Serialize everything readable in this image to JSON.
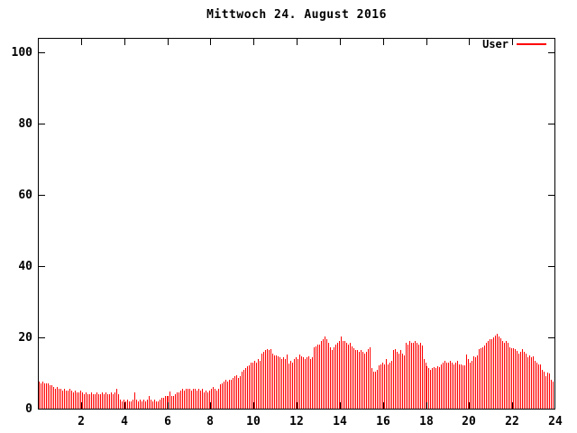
{
  "title": "Mittwoch 24. August 2016",
  "legend": {
    "label": "User",
    "color": "#ff0000"
  },
  "colors": {
    "bar": "#ff0000",
    "axis": "#000000",
    "background": "#ffffff"
  },
  "chart_data": {
    "type": "bar",
    "title": "Mittwoch 24. August 2016",
    "series_name": "User",
    "bar_style": "impulses",
    "bar_color": "#ff0000",
    "x_unit": "hour-of-day",
    "sample_interval_minutes": 5,
    "xlim": [
      0,
      24
    ],
    "ylim": [
      0,
      104
    ],
    "x_ticks": [
      2,
      4,
      6,
      8,
      10,
      12,
      14,
      16,
      18,
      20,
      22,
      24
    ],
    "y_ticks": [
      0,
      20,
      40,
      60,
      80,
      100
    ],
    "grid": false,
    "legend_position": "top-right",
    "values": [
      7.5,
      7,
      7.5,
      7,
      7,
      7,
      6.5,
      6.5,
      6,
      5.5,
      6,
      5.5,
      5.5,
      5,
      5.5,
      5,
      5,
      5.5,
      5,
      4.5,
      5,
      4.5,
      4.5,
      5,
      4.5,
      4,
      4.5,
      4,
      4,
      4.5,
      4,
      4,
      4.5,
      4,
      4,
      4.5,
      4,
      4.5,
      4,
      4,
      4.5,
      4,
      4.5,
      5.5,
      4,
      2.5,
      2,
      2.5,
      2,
      2.5,
      2,
      2,
      2.5,
      4.5,
      2.5,
      2,
      2.5,
      2,
      2.5,
      2,
      2.5,
      3.5,
      2.5,
      2,
      2.5,
      2,
      2,
      2.5,
      3,
      3,
      3.5,
      3.5,
      3.5,
      4.75,
      3.5,
      3.5,
      4,
      4.5,
      4.5,
      5,
      5.5,
      5,
      5.5,
      5.5,
      5.5,
      5,
      5.5,
      5.5,
      5,
      5.5,
      5,
      5.5,
      4.5,
      5,
      4.5,
      5,
      5.5,
      6,
      5.5,
      5,
      5.5,
      6.75,
      7,
      7.5,
      8,
      7.5,
      8,
      8,
      8.5,
      9,
      9.25,
      8.5,
      9,
      10.5,
      11,
      11.5,
      12,
      12.25,
      13,
      13,
      13.5,
      13,
      14,
      13.5,
      15.5,
      16,
      16.5,
      16.75,
      16.5,
      16.75,
      15.5,
      15,
      15,
      14.75,
      14.5,
      14,
      14.5,
      14,
      15.25,
      12.75,
      13.5,
      13,
      14,
      14.5,
      14,
      15.25,
      14.75,
      14.5,
      14,
      14.5,
      14.75,
      14,
      14.5,
      17.25,
      17.5,
      18,
      18,
      19,
      19.5,
      20.25,
      19.5,
      18.5,
      17.25,
      16.5,
      17.25,
      18,
      18.5,
      19,
      20.25,
      19,
      19,
      18.5,
      18,
      18.5,
      17.5,
      17,
      16.5,
      16.5,
      16,
      16.5,
      16,
      15.5,
      16,
      16.75,
      17.25,
      11.5,
      10.5,
      10.5,
      11,
      12.25,
      12.5,
      13,
      12.5,
      14,
      12.5,
      13,
      13.5,
      16.5,
      16.75,
      16,
      15.5,
      16.5,
      15.5,
      15,
      18.5,
      18,
      19,
      18.5,
      18.5,
      19,
      18.5,
      18,
      18.5,
      17.75,
      14,
      13,
      12,
      11.5,
      11,
      11.5,
      11.75,
      11.5,
      12,
      11.75,
      12.5,
      13,
      13.5,
      13,
      13,
      13.5,
      13,
      12.5,
      13,
      13.5,
      12.5,
      12.5,
      12.25,
      12.25,
      15.25,
      14,
      13,
      13.5,
      14.75,
      14.5,
      15,
      16.75,
      17,
      17.25,
      17.75,
      18.5,
      19,
      19.5,
      19.5,
      20,
      20.5,
      21,
      20.25,
      19.75,
      19,
      18.5,
      19,
      18.5,
      17.25,
      17,
      17,
      16.75,
      16.25,
      15.5,
      16,
      16.75,
      16,
      15.5,
      14.5,
      15,
      14.5,
      14.75,
      13.5,
      13,
      12.5,
      12.5,
      11,
      10.5,
      9,
      10,
      9.75,
      8,
      7.5,
      6.75
    ]
  }
}
